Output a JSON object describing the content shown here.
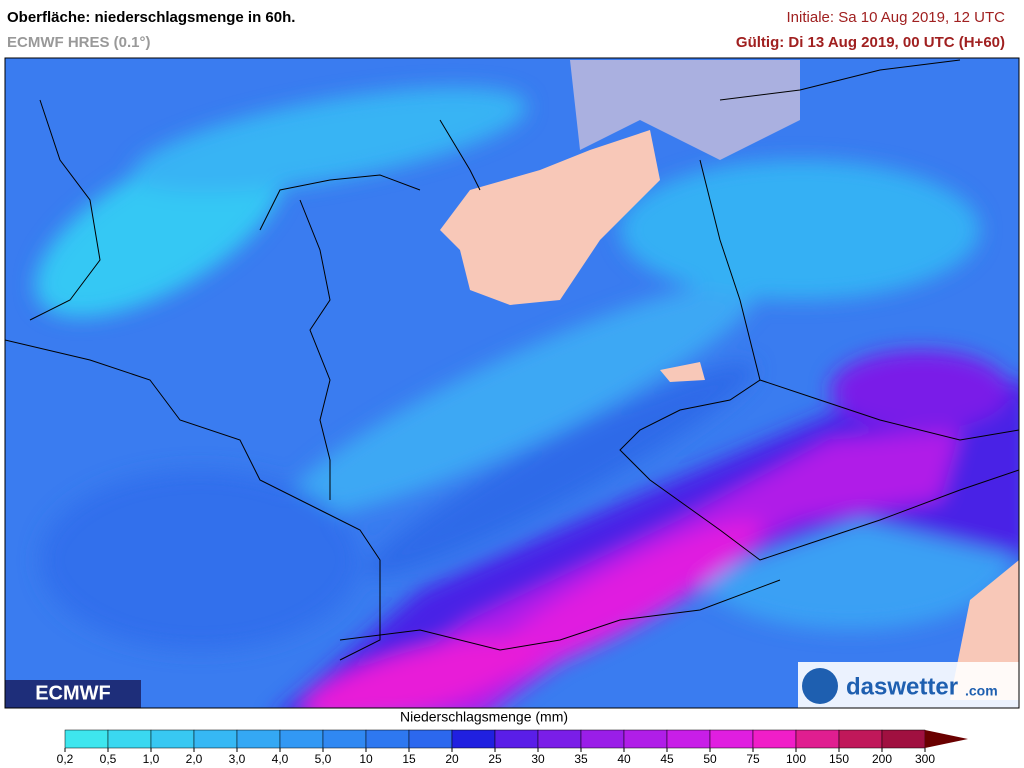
{
  "header": {
    "title": "Oberfläche: niederschlagsmenge in 60h.",
    "subtitle": "ECMWF HRES (0.1°)",
    "init": "Initiale: Sa 10 Aug 2019, 12 UTC",
    "valid": "Gültig: Di 13 Aug 2019, 00 UTC (H+60)"
  },
  "legend": {
    "label": "Niederschlagsmenge (mm)",
    "ticks": [
      "0,2",
      "0,5",
      "1,0",
      "2,0",
      "3,0",
      "4,0",
      "5,0",
      "10",
      "15",
      "20",
      "25",
      "30",
      "35",
      "40",
      "45",
      "50",
      "75",
      "100",
      "150",
      "200",
      "300"
    ],
    "colors": [
      "#3ee6ee",
      "#3ad8f0",
      "#38c8f2",
      "#36b8f4",
      "#34a8f4",
      "#3298f4",
      "#3088f2",
      "#2e78f0",
      "#2c68ee",
      "#2020e0",
      "#5a1ee8",
      "#7a1ee8",
      "#9a1ee8",
      "#b01ee8",
      "#c81ee8",
      "#e01ee0",
      "#f01ec8",
      "#e01e90",
      "#c0185a",
      "#a01040"
    ],
    "arrow_color": "#6a0000"
  },
  "logos": {
    "left": "ECMWF",
    "right_name": "daswetter",
    "right_suffix": ".com"
  }
}
